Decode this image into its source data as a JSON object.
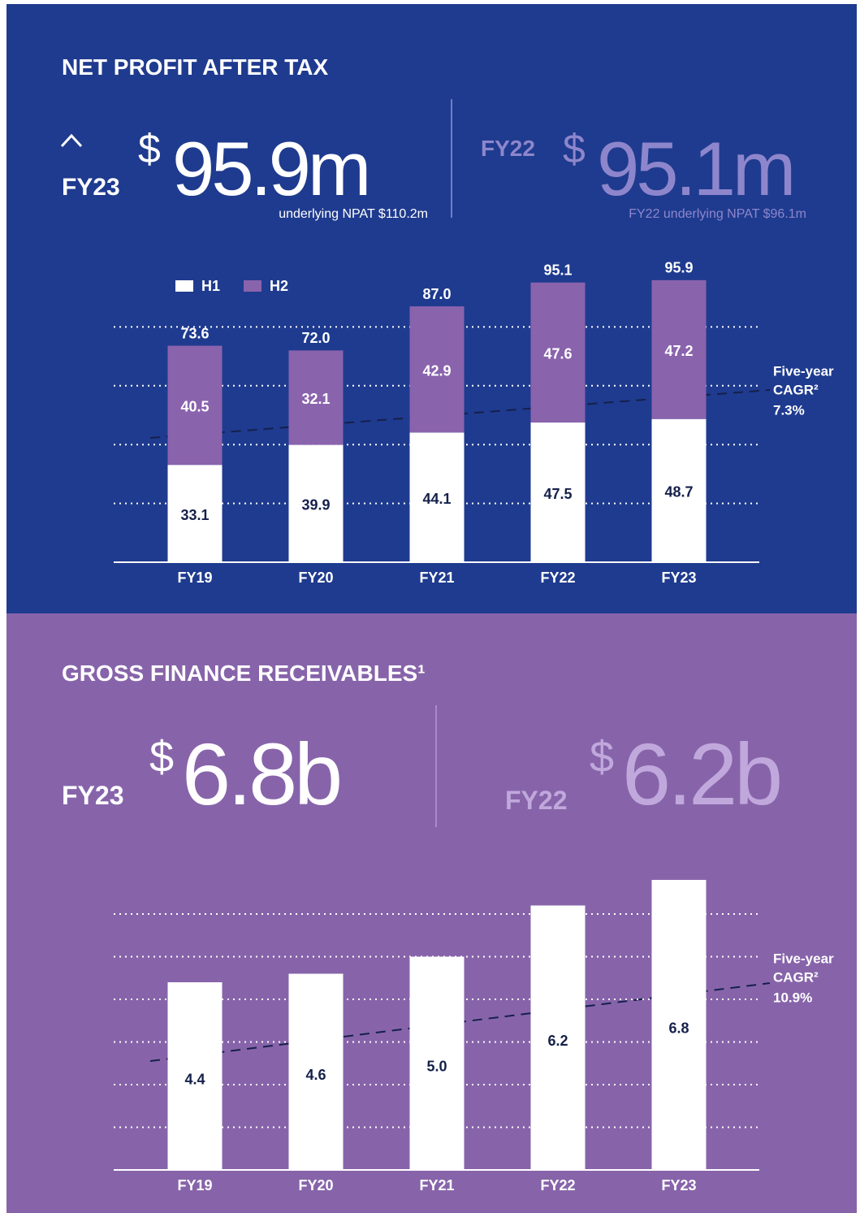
{
  "sections": [
    {
      "title": "NET PROFIT AFTER TAX",
      "current": {
        "period": "FY23",
        "currency": "$",
        "value": "95.9m",
        "note": "underlying NPAT $110.2m"
      },
      "prior": {
        "period": "FY22",
        "currency": "$",
        "value": "95.1m",
        "note": "FY22 underlying NPAT $96.1m"
      }
    },
    {
      "title": "GROSS FINANCE RECEIVABLES¹",
      "current": {
        "period": "FY23",
        "currency": "$",
        "value": "6.8b"
      },
      "prior": {
        "period": "FY22",
        "currency": "$",
        "value": "6.2b"
      }
    }
  ],
  "chart_data": [
    {
      "type": "stacked_bar",
      "categories": [
        "FY19",
        "FY20",
        "FY21",
        "FY22",
        "FY23"
      ],
      "series": [
        {
          "name": "H1",
          "color": "#ffffff",
          "values": [
            33.1,
            39.9,
            44.1,
            47.5,
            48.7
          ]
        },
        {
          "name": "H2",
          "color": "#8a63ad",
          "values": [
            40.5,
            32.1,
            42.9,
            47.6,
            47.2
          ]
        }
      ],
      "totals": [
        73.6,
        72,
        87,
        95.1,
        95.9
      ],
      "total_labels": [
        "73.6",
        "72.0",
        "87.0",
        "95.1",
        "95.9"
      ],
      "ylim": [
        0,
        100
      ],
      "yticks": [
        0,
        20,
        40,
        60,
        80
      ],
      "grid": true,
      "legend": "top-left",
      "annotation": [
        "Five-year",
        "CAGR²",
        "7.3%"
      ]
    },
    {
      "type": "bar",
      "categories": [
        "FY19",
        "FY20",
        "FY21",
        "FY22",
        "FY23"
      ],
      "values": [
        4.4,
        4.6,
        5.0,
        6.2,
        6.8
      ],
      "value_labels": [
        "4.4",
        "4.6",
        "5.0",
        "6.2",
        "6.8"
      ],
      "color": "#ffffff",
      "ylim": [
        0,
        7
      ],
      "yticks": [
        0,
        1,
        2,
        3,
        4,
        5,
        6
      ],
      "grid": true,
      "annotation": [
        "Five-year",
        "CAGR²",
        "10.9%"
      ]
    }
  ]
}
